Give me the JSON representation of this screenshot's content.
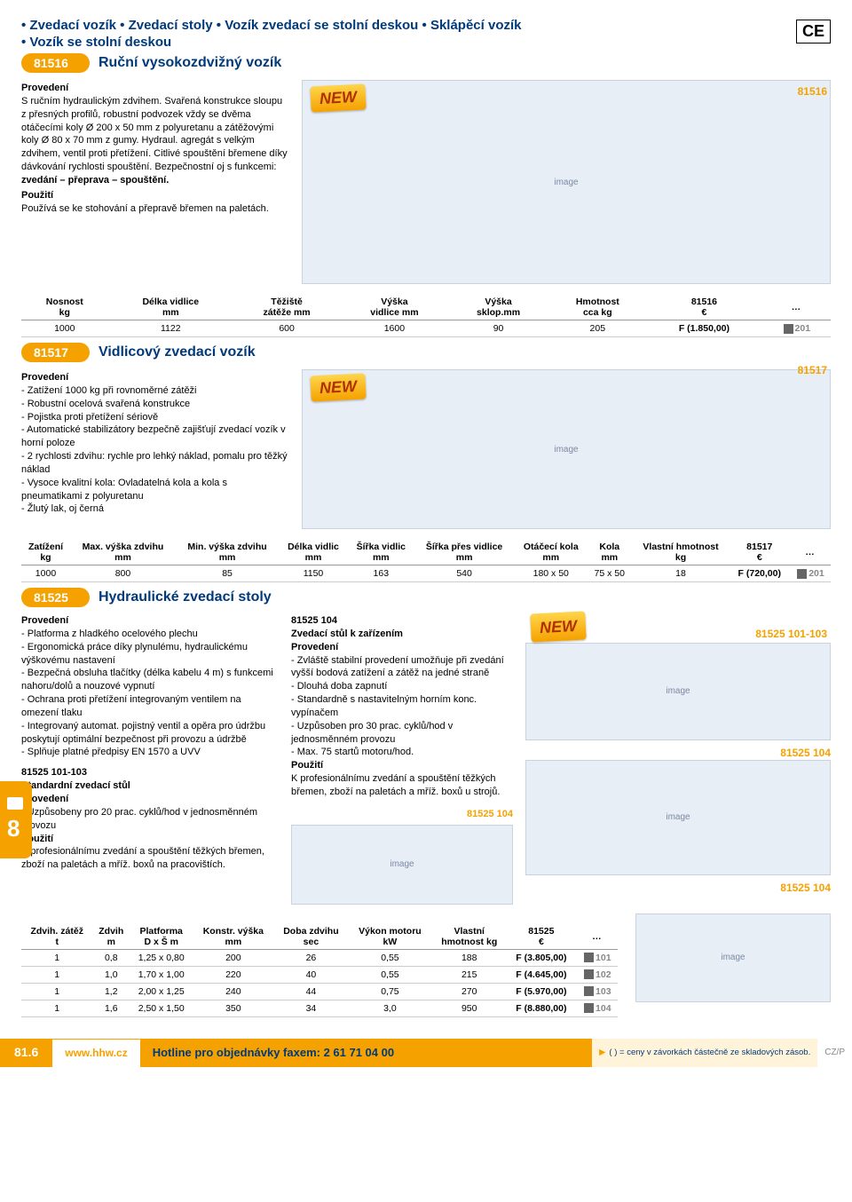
{
  "header": {
    "line1_items": [
      "Zvedací vozík",
      "Zvedací stoly",
      "Vozík zvedací se stolní deskou",
      "Sklápěcí vozík"
    ],
    "line2_items": [
      "Vozík se stolní deskou"
    ]
  },
  "ce_mark": "CE",
  "new_label": "NEW",
  "colors": {
    "accent": "#f5a100",
    "dark_blue": "#003a7a"
  },
  "s81516": {
    "code": "81516",
    "title": "Ruční vysokozdvižný vozík",
    "provedeni_h": "Provedení",
    "provedeni": "S ručním hydraulickým zdvihem. Svařená konstrukce sloupu z přesných profilů, robustní podvozek vždy se dvěma otáčecími koly Ø 200 x 50 mm z polyuretanu a zátěžovými koly Ø 80 x 70 mm z gumy. Hydraul. agregát s velkým zdvihem, ventil proti přetížení. Citlivé spouštění břemene díky dávkování rychlosti spouštění. Bezpečnostní oj s funkcemi:",
    "bold_line": "zvedání – přeprava – spouštění.",
    "pouziti_h": "Použití",
    "pouziti": "Používá se ke stohování a přepravě břemen na paletách.",
    "img_label": "81516",
    "table": {
      "headers": [
        "Nosnost\nkg",
        "Délka vidlice\nmm",
        "Těžiště\nzátěže mm",
        "Výška\nvidlice mm",
        "Výška\nsklop.mm",
        "Hmotnost\ncca kg",
        "81516\n€",
        "…"
      ],
      "rows": [
        [
          "1000",
          "1122",
          "600",
          "1600",
          "90",
          "205",
          "F (1.850,00)",
          "201"
        ]
      ]
    }
  },
  "s81517": {
    "code": "81517",
    "title": "Vidlicový zvedací vozík",
    "provedeni_h": "Provedení",
    "bullets": [
      "Zatížení 1000 kg při rovnoměrné zátěži",
      "Robustní ocelová svařená konstrukce",
      "Pojistka proti přetížení sériově",
      "Automatické stabilizátory bezpečně zajišťují zvedací vozík v horní poloze",
      "2 rychlosti zdvihu: rychle pro lehký náklad, pomalu pro těžký náklad",
      "Vysoce kvalitní kola: Ovladatelná kola a kola s pneumatikami z polyuretanu",
      "Žlutý lak, oj černá"
    ],
    "img_label": "81517",
    "table": {
      "headers": [
        "Zatížení\nkg",
        "Max. výška zdvihu\nmm",
        "Min. výška zdvihu\nmm",
        "Délka vidlic\nmm",
        "Šířka vidlic\nmm",
        "Šířka přes vidlice\nmm",
        "Otáčecí kola\nmm",
        "Kola\nmm",
        "Vlastní hmotnost\nkg",
        "81517\n€",
        "…"
      ],
      "rows": [
        [
          "1000",
          "800",
          "85",
          "1150",
          "163",
          "540",
          "180 x 50",
          "75 x 50",
          "18",
          "F (720,00)",
          "201"
        ]
      ]
    }
  },
  "s81525": {
    "code": "81525",
    "title": "Hydraulické zvedací stoly",
    "left": {
      "provedeni_h": "Provedení",
      "bullets": [
        "Platforma z hladkého ocelového plechu",
        "Ergonomická práce díky plynulému, hydraulickému výškovému nastavení",
        "Bezpečná obsluha tlačítky (délka kabelu 4 m) s funkcemi nahoru/dolů a nouzové vypnutí",
        "Ochrana proti přetížení integrovaným ventilem na omezení tlaku",
        "Integrovaný automat. pojistný ventil a opěra pro údržbu poskytují optimální bezpečnost při provozu a údržbě",
        "Splňuje platné předpisy EN 1570 a UVV"
      ],
      "sub_h": "81525 101-103",
      "sub_title": "Standardní zvedací stůl",
      "sub_prov_h": "Provedení",
      "sub_bullets": [
        "Uzpůsobeny pro 20 prac. cyklů/hod v jednosměnném provozu"
      ],
      "pouziti_h": "Použití",
      "pouziti": "K profesionálnímu zvedání a spouštění těžkých břemen, zboží na paletách a mříž. boxů na pracovištích."
    },
    "mid": {
      "h1": "81525 104",
      "h2": "Zvedací stůl k zařízením",
      "provedeni_h": "Provedení",
      "bullets": [
        "Zvláště stabilní provedení umožňuje při zvedání vyšší bodová zatížení a zátěž na jedné straně",
        "Dlouhá doba zapnutí",
        "Standardně s nastavitelným horním konc. vypínačem",
        "Uzpůsoben pro 30 prac. cyklů/hod v jednosměnném provozu",
        "Max. 75 startů motoru/hod."
      ],
      "pouziti_h": "Použití",
      "pouziti": "K profesionálnímu zvedání a spouštění těžkých břemen, zboží na paletách a mříž. boxů u strojů."
    },
    "img_labels": {
      "a": "81525 101-103",
      "b": "81525 104",
      "c": "81525 104",
      "d": "81525 104"
    },
    "table": {
      "headers": [
        "Zdvih. zátěž\nt",
        "Zdvih\nm",
        "Platforma\nD x Š m",
        "Konstr. výška\nmm",
        "Doba zdvihu\nsec",
        "Výkon motoru\nkW",
        "Vlastní\nhmotnost kg",
        "81525\n€",
        "…"
      ],
      "rows": [
        [
          "1",
          "0,8",
          "1,25 x 0,80",
          "200",
          "26",
          "0,55",
          "188",
          "F (3.805,00)",
          "101"
        ],
        [
          "1",
          "1,0",
          "1,70 x 1,00",
          "220",
          "40",
          "0,55",
          "215",
          "F (4.645,00)",
          "102"
        ],
        [
          "1",
          "1,2",
          "2,00 x 1,25",
          "240",
          "44",
          "0,75",
          "270",
          "F (5.970,00)",
          "103"
        ],
        [
          "1",
          "1,6",
          "2,50 x 1,50",
          "350",
          "34",
          "3,0",
          "950",
          "F (8.880,00)",
          "104"
        ]
      ]
    }
  },
  "tab8": "8",
  "footer": {
    "page": "81.6",
    "url": "www.hhw.cz",
    "hotline": "Hotline pro objednávky faxem: 2 61 71 04 00",
    "note": "( ) = ceny v závorkách částečně ze skladových zásob.",
    "cz": "CZ/P"
  }
}
